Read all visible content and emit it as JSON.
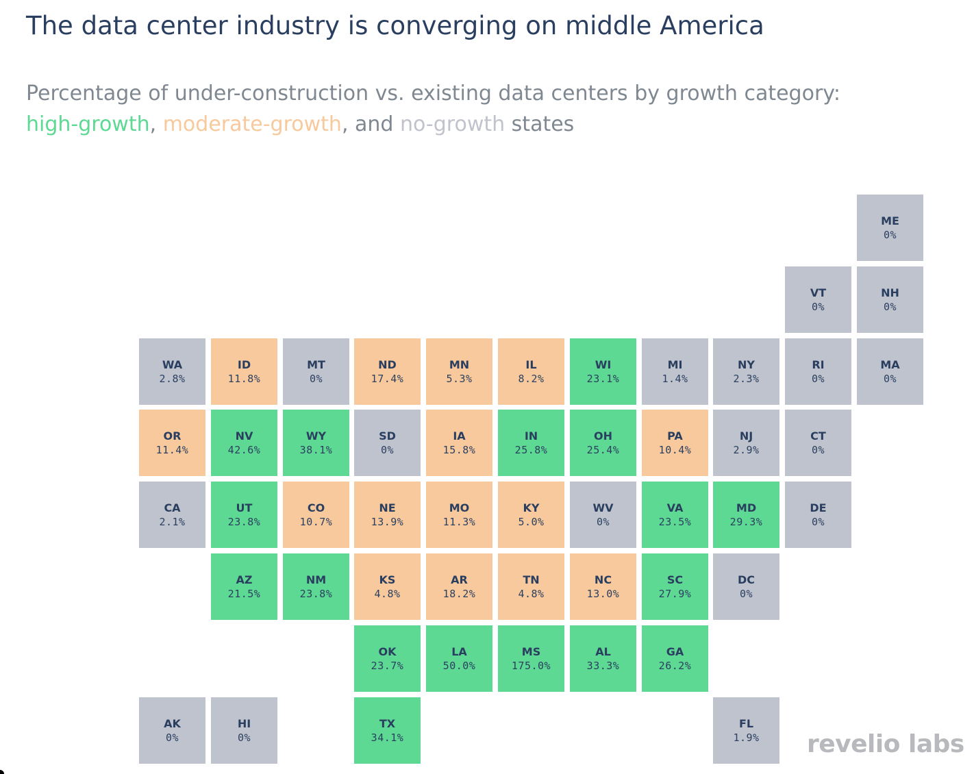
{
  "title": "The data center industry is converging on middle America",
  "subtitle": {
    "line1": "Percentage of under-construction vs. existing data centers by growth category:",
    "high": "high-growth",
    "comma1": ", ",
    "moderate": "moderate-growth",
    "comma2": ", and ",
    "none": "no-growth",
    "tail": " states"
  },
  "colors": {
    "high": "#5dd994",
    "moderate": "#f8c99c",
    "none": "#bfc3ce",
    "high_text": "#5dd994",
    "moderate_text": "#f8c99c",
    "none_text": "#c0c3cc"
  },
  "logo": "revelio labs",
  "states": [
    {
      "abbr": "ME",
      "value": "0%",
      "category": "none",
      "col": 10,
      "row": 0
    },
    {
      "abbr": "VT",
      "value": "0%",
      "category": "none",
      "col": 9,
      "row": 1
    },
    {
      "abbr": "NH",
      "value": "0%",
      "category": "none",
      "col": 10,
      "row": 1
    },
    {
      "abbr": "WA",
      "value": "2.8%",
      "category": "none",
      "col": 0,
      "row": 2
    },
    {
      "abbr": "ID",
      "value": "11.8%",
      "category": "moderate",
      "col": 1,
      "row": 2
    },
    {
      "abbr": "MT",
      "value": "0%",
      "category": "none",
      "col": 2,
      "row": 2
    },
    {
      "abbr": "ND",
      "value": "17.4%",
      "category": "moderate",
      "col": 3,
      "row": 2
    },
    {
      "abbr": "MN",
      "value": "5.3%",
      "category": "moderate",
      "col": 4,
      "row": 2
    },
    {
      "abbr": "IL",
      "value": "8.2%",
      "category": "moderate",
      "col": 5,
      "row": 2
    },
    {
      "abbr": "WI",
      "value": "23.1%",
      "category": "high",
      "col": 6,
      "row": 2
    },
    {
      "abbr": "MI",
      "value": "1.4%",
      "category": "none",
      "col": 7,
      "row": 2
    },
    {
      "abbr": "NY",
      "value": "2.3%",
      "category": "none",
      "col": 8,
      "row": 2
    },
    {
      "abbr": "RI",
      "value": "0%",
      "category": "none",
      "col": 9,
      "row": 2
    },
    {
      "abbr": "MA",
      "value": "0%",
      "category": "none",
      "col": 10,
      "row": 2
    },
    {
      "abbr": "OR",
      "value": "11.4%",
      "category": "moderate",
      "col": 0,
      "row": 3
    },
    {
      "abbr": "NV",
      "value": "42.6%",
      "category": "high",
      "col": 1,
      "row": 3
    },
    {
      "abbr": "WY",
      "value": "38.1%",
      "category": "high",
      "col": 2,
      "row": 3
    },
    {
      "abbr": "SD",
      "value": "0%",
      "category": "none",
      "col": 3,
      "row": 3
    },
    {
      "abbr": "IA",
      "value": "15.8%",
      "category": "moderate",
      "col": 4,
      "row": 3
    },
    {
      "abbr": "IN",
      "value": "25.8%",
      "category": "high",
      "col": 5,
      "row": 3
    },
    {
      "abbr": "OH",
      "value": "25.4%",
      "category": "high",
      "col": 6,
      "row": 3
    },
    {
      "abbr": "PA",
      "value": "10.4%",
      "category": "moderate",
      "col": 7,
      "row": 3
    },
    {
      "abbr": "NJ",
      "value": "2.9%",
      "category": "none",
      "col": 8,
      "row": 3
    },
    {
      "abbr": "CT",
      "value": "0%",
      "category": "none",
      "col": 9,
      "row": 3
    },
    {
      "abbr": "CA",
      "value": "2.1%",
      "category": "none",
      "col": 0,
      "row": 4
    },
    {
      "abbr": "UT",
      "value": "23.8%",
      "category": "high",
      "col": 1,
      "row": 4
    },
    {
      "abbr": "CO",
      "value": "10.7%",
      "category": "moderate",
      "col": 2,
      "row": 4
    },
    {
      "abbr": "NE",
      "value": "13.9%",
      "category": "moderate",
      "col": 3,
      "row": 4
    },
    {
      "abbr": "MO",
      "value": "11.3%",
      "category": "moderate",
      "col": 4,
      "row": 4
    },
    {
      "abbr": "KY",
      "value": "5.0%",
      "category": "moderate",
      "col": 5,
      "row": 4
    },
    {
      "abbr": "WV",
      "value": "0%",
      "category": "none",
      "col": 6,
      "row": 4
    },
    {
      "abbr": "VA",
      "value": "23.5%",
      "category": "high",
      "col": 7,
      "row": 4
    },
    {
      "abbr": "MD",
      "value": "29.3%",
      "category": "high",
      "col": 8,
      "row": 4
    },
    {
      "abbr": "DE",
      "value": "0%",
      "category": "none",
      "col": 9,
      "row": 4
    },
    {
      "abbr": "AZ",
      "value": "21.5%",
      "category": "high",
      "col": 1,
      "row": 5
    },
    {
      "abbr": "NM",
      "value": "23.8%",
      "category": "high",
      "col": 2,
      "row": 5
    },
    {
      "abbr": "KS",
      "value": "4.8%",
      "category": "moderate",
      "col": 3,
      "row": 5
    },
    {
      "abbr": "AR",
      "value": "18.2%",
      "category": "moderate",
      "col": 4,
      "row": 5
    },
    {
      "abbr": "TN",
      "value": "4.8%",
      "category": "moderate",
      "col": 5,
      "row": 5
    },
    {
      "abbr": "NC",
      "value": "13.0%",
      "category": "moderate",
      "col": 6,
      "row": 5
    },
    {
      "abbr": "SC",
      "value": "27.9%",
      "category": "high",
      "col": 7,
      "row": 5
    },
    {
      "abbr": "DC",
      "value": "0%",
      "category": "none",
      "col": 8,
      "row": 5
    },
    {
      "abbr": "OK",
      "value": "23.7%",
      "category": "high",
      "col": 3,
      "row": 6
    },
    {
      "abbr": "LA",
      "value": "50.0%",
      "category": "high",
      "col": 4,
      "row": 6
    },
    {
      "abbr": "MS",
      "value": "175.0%",
      "category": "high",
      "col": 5,
      "row": 6
    },
    {
      "abbr": "AL",
      "value": "33.3%",
      "category": "high",
      "col": 6,
      "row": 6
    },
    {
      "abbr": "GA",
      "value": "26.2%",
      "category": "high",
      "col": 7,
      "row": 6
    },
    {
      "abbr": "AK",
      "value": "0%",
      "category": "none",
      "col": 0,
      "row": 7
    },
    {
      "abbr": "HI",
      "value": "0%",
      "category": "none",
      "col": 1,
      "row": 7
    },
    {
      "abbr": "TX",
      "value": "34.1%",
      "category": "high",
      "col": 3,
      "row": 7
    },
    {
      "abbr": "FL",
      "value": "1.9%",
      "category": "none",
      "col": 8,
      "row": 7
    }
  ]
}
